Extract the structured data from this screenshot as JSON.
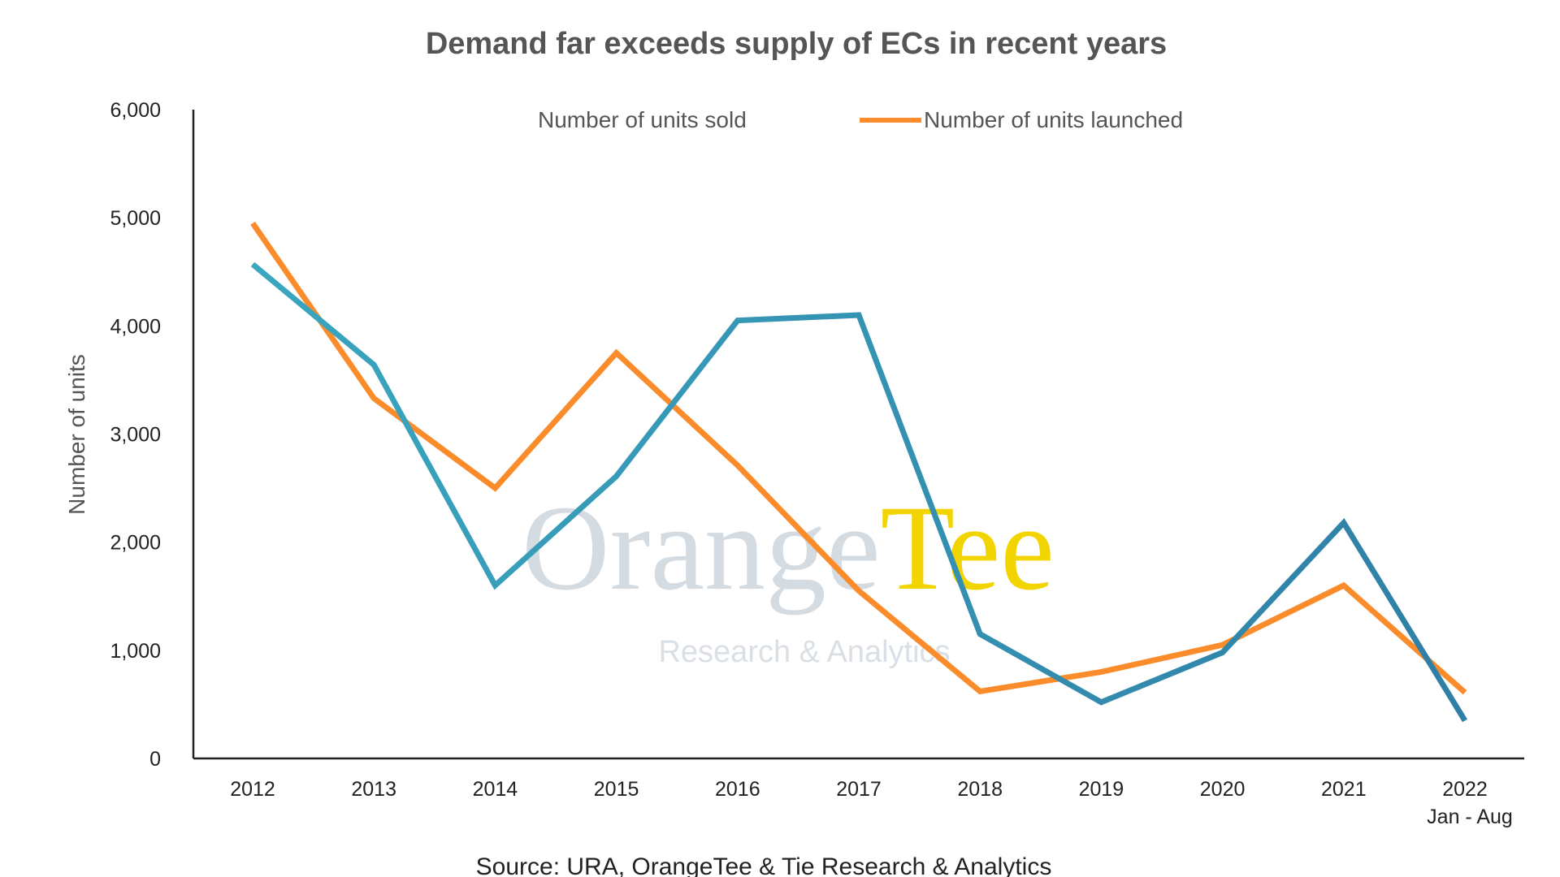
{
  "chart_data": {
    "type": "line",
    "title": "Demand far exceeds supply of ECs in recent years",
    "ylabel": "Number of units",
    "xlabel": "",
    "categories": [
      "2012",
      "2013",
      "2014",
      "2015",
      "2016",
      "2017",
      "2018",
      "2019",
      "2020",
      "2021",
      "2022"
    ],
    "category_sublabels": [
      "",
      "",
      "",
      "",
      "",
      "",
      "",
      "",
      "",
      "",
      "Jan - Aug"
    ],
    "ylim": [
      0,
      6000
    ],
    "yticks": [
      0,
      1000,
      2000,
      3000,
      4000,
      5000,
      6000
    ],
    "ytick_labels": [
      "0",
      "1,000",
      "2,000",
      "3,000",
      "4,000",
      "5,000",
      "6,000"
    ],
    "grid": false,
    "legend_position": "top",
    "series": [
      {
        "name": "Number of units sold",
        "color": "#3aa6bf",
        "color_end": "#2f7fa6",
        "values": [
          4570,
          3640,
          1600,
          2610,
          4050,
          4100,
          1150,
          520,
          980,
          2180,
          350
        ]
      },
      {
        "name": "Number of units launched",
        "color": "#fb8c2c",
        "values": [
          4950,
          3330,
          2500,
          3750,
          2710,
          1550,
          620,
          800,
          1050,
          1600,
          610
        ]
      }
    ],
    "source": "Source: URA, OrangeTee & Tie Research & Analytics",
    "watermark": {
      "brand_part1": "Orange",
      "brand_part2": "Tee",
      "subtitle": "Research & Analytics"
    }
  }
}
